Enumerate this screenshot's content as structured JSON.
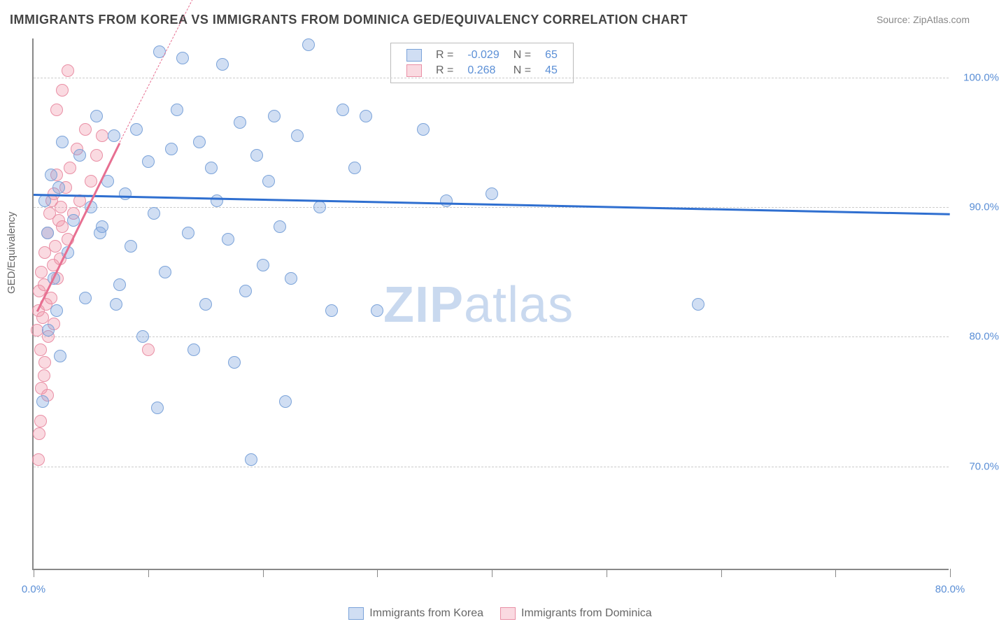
{
  "title": "IMMIGRANTS FROM KOREA VS IMMIGRANTS FROM DOMINICA GED/EQUIVALENCY CORRELATION CHART",
  "source_label": "Source: ZipAtlas.com",
  "ylabel": "GED/Equivalency",
  "watermark": {
    "zip": "ZIP",
    "atlas": "atlas",
    "color": "#c9d9ef"
  },
  "plot": {
    "background": "#ffffff",
    "axis_color": "#888888",
    "grid_color": "#cccccc",
    "xlim": [
      0.0,
      80.0
    ],
    "ylim": [
      62.0,
      103.0
    ],
    "yticks": [
      {
        "v": 70.0,
        "label": "70.0%"
      },
      {
        "v": 80.0,
        "label": "80.0%"
      },
      {
        "v": 90.0,
        "label": "90.0%"
      },
      {
        "v": 100.0,
        "label": "100.0%"
      }
    ],
    "xtick_positions": [
      0,
      10,
      20,
      30,
      40,
      50,
      60,
      70,
      80
    ],
    "xtick_labels": [
      {
        "v": 0.0,
        "label": "0.0%"
      },
      {
        "v": 80.0,
        "label": "80.0%"
      }
    ],
    "marker_radius": 9,
    "tick_label_color": "#5b8fd6"
  },
  "series": {
    "korea": {
      "label": "Immigrants from Korea",
      "fill": "rgba(120,160,220,0.35)",
      "stroke": "#7ba3d9",
      "trend_color": "#2f6fd0",
      "trend": {
        "x1": 0,
        "y1": 91.0,
        "x2": 80,
        "y2": 89.5,
        "width": 2.5,
        "dashed": false
      },
      "R": "-0.029",
      "N": "65",
      "points": [
        [
          1.0,
          90.5
        ],
        [
          1.2,
          88.0
        ],
        [
          1.5,
          92.5
        ],
        [
          2.0,
          82.0
        ],
        [
          2.2,
          91.5
        ],
        [
          2.5,
          95.0
        ],
        [
          3.0,
          86.5
        ],
        [
          3.5,
          89.0
        ],
        [
          4.0,
          94.0
        ],
        [
          4.5,
          83.0
        ],
        [
          5.0,
          90.0
        ],
        [
          5.5,
          97.0
        ],
        [
          6.0,
          88.5
        ],
        [
          6.5,
          92.0
        ],
        [
          7.0,
          95.5
        ],
        [
          7.5,
          84.0
        ],
        [
          8.0,
          91.0
        ],
        [
          8.5,
          87.0
        ],
        [
          9.0,
          96.0
        ],
        [
          9.5,
          80.0
        ],
        [
          10.0,
          93.5
        ],
        [
          10.5,
          89.5
        ],
        [
          11.0,
          102.0
        ],
        [
          11.5,
          85.0
        ],
        [
          12.0,
          94.5
        ],
        [
          12.5,
          97.5
        ],
        [
          13.0,
          101.5
        ],
        [
          13.5,
          88.0
        ],
        [
          14.0,
          79.0
        ],
        [
          14.5,
          95.0
        ],
        [
          15.0,
          82.5
        ],
        [
          15.5,
          93.0
        ],
        [
          16.0,
          90.5
        ],
        [
          16.5,
          101.0
        ],
        [
          17.0,
          87.5
        ],
        [
          17.5,
          78.0
        ],
        [
          18.0,
          96.5
        ],
        [
          18.5,
          83.5
        ],
        [
          19.0,
          70.5
        ],
        [
          19.5,
          94.0
        ],
        [
          20.0,
          85.5
        ],
        [
          20.5,
          92.0
        ],
        [
          21.0,
          97.0
        ],
        [
          21.5,
          88.5
        ],
        [
          22.0,
          75.0
        ],
        [
          22.5,
          84.5
        ],
        [
          23.0,
          95.5
        ],
        [
          24.0,
          102.5
        ],
        [
          25.0,
          90.0
        ],
        [
          26.0,
          82.0
        ],
        [
          27.0,
          97.5
        ],
        [
          28.0,
          93.0
        ],
        [
          29.0,
          97.0
        ],
        [
          30.0,
          82.0
        ],
        [
          34.0,
          96.0
        ],
        [
          36.0,
          90.5
        ],
        [
          40.0,
          91.0
        ],
        [
          0.8,
          75.0
        ],
        [
          1.3,
          80.5
        ],
        [
          1.8,
          84.5
        ],
        [
          2.3,
          78.5
        ],
        [
          5.8,
          88.0
        ],
        [
          7.2,
          82.5
        ],
        [
          10.8,
          74.5
        ],
        [
          58.0,
          82.5
        ]
      ]
    },
    "dominica": {
      "label": "Immigrants from Dominica",
      "fill": "rgba(240,150,170,0.35)",
      "stroke": "#e98fa5",
      "trend_color": "#e76f91",
      "trend_solid": {
        "x1": 0.3,
        "y1": 82.0,
        "x2": 7.5,
        "y2": 95.0,
        "width": 2.5,
        "dashed": false
      },
      "trend_dash": {
        "x1": 7.5,
        "y1": 95.0,
        "x2": 15.0,
        "y2": 108.0,
        "width": 1.2,
        "dashed": true
      },
      "R": "0.268",
      "N": "45",
      "points": [
        [
          0.3,
          80.5
        ],
        [
          0.4,
          82.0
        ],
        [
          0.5,
          83.5
        ],
        [
          0.6,
          79.0
        ],
        [
          0.7,
          85.0
        ],
        [
          0.8,
          81.5
        ],
        [
          0.9,
          84.0
        ],
        [
          1.0,
          86.5
        ],
        [
          1.1,
          82.5
        ],
        [
          1.2,
          88.0
        ],
        [
          1.3,
          80.0
        ],
        [
          1.4,
          89.5
        ],
        [
          1.5,
          83.0
        ],
        [
          1.6,
          90.5
        ],
        [
          1.7,
          85.5
        ],
        [
          1.8,
          91.0
        ],
        [
          1.9,
          87.0
        ],
        [
          2.0,
          92.5
        ],
        [
          2.1,
          84.5
        ],
        [
          2.2,
          89.0
        ],
        [
          2.3,
          86.0
        ],
        [
          2.4,
          90.0
        ],
        [
          2.5,
          88.5
        ],
        [
          2.8,
          91.5
        ],
        [
          3.0,
          87.5
        ],
        [
          3.2,
          93.0
        ],
        [
          3.5,
          89.5
        ],
        [
          3.8,
          94.5
        ],
        [
          4.0,
          90.5
        ],
        [
          4.5,
          96.0
        ],
        [
          5.0,
          92.0
        ],
        [
          5.5,
          94.0
        ],
        [
          6.0,
          95.5
        ],
        [
          0.5,
          72.5
        ],
        [
          0.6,
          73.5
        ],
        [
          0.7,
          76.0
        ],
        [
          0.4,
          70.5
        ],
        [
          1.0,
          78.0
        ],
        [
          1.2,
          75.5
        ],
        [
          2.0,
          97.5
        ],
        [
          2.5,
          99.0
        ],
        [
          3.0,
          100.5
        ],
        [
          10.0,
          79.0
        ],
        [
          1.8,
          81.0
        ],
        [
          0.9,
          77.0
        ]
      ]
    }
  },
  "legend_top": {
    "rows": [
      {
        "swatch_series": "korea",
        "R_label": "R =",
        "R_val": "-0.029",
        "N_label": "N =",
        "N_val": "65"
      },
      {
        "swatch_series": "dominica",
        "R_label": "R =",
        "R_val": "0.268",
        "N_label": "N =",
        "N_val": "45"
      }
    ]
  },
  "legend_bottom": {
    "items": [
      {
        "swatch_series": "korea",
        "label": "Immigrants from Korea"
      },
      {
        "swatch_series": "dominica",
        "label": "Immigrants from Dominica"
      }
    ]
  }
}
